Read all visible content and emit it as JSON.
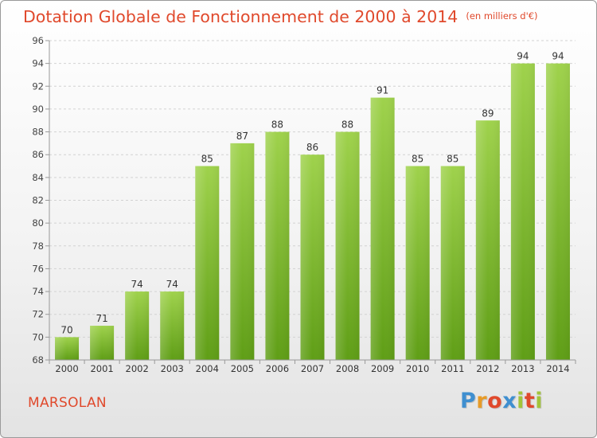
{
  "title": "Dotation Globale de Fonctionnement de 2000 à 2014",
  "unit": "(en milliers d'€)",
  "location": "MARSOLAN",
  "brand": {
    "letters": [
      "P",
      "r",
      "o",
      "x",
      "i",
      "t",
      "i"
    ],
    "colors": [
      "#3f8fd0",
      "#e79b28",
      "#e0492c",
      "#3f8fd0",
      "#a2c43a",
      "#e0492c",
      "#a2c43a"
    ]
  },
  "chart_data": {
    "type": "bar",
    "title": "Dotation Globale de Fonctionnement de 2000 à 2014",
    "categories": [
      "2000",
      "2001",
      "2002",
      "2003",
      "2004",
      "2005",
      "2006",
      "2007",
      "2008",
      "2009",
      "2010",
      "2011",
      "2012",
      "2013",
      "2014"
    ],
    "values": [
      70,
      71,
      74,
      74,
      85,
      87,
      88,
      86,
      88,
      91,
      85,
      85,
      89,
      94,
      94
    ],
    "xlabel": "",
    "ylabel": "",
    "ylim": [
      68,
      96
    ],
    "yticks": [
      68,
      70,
      72,
      74,
      76,
      78,
      80,
      82,
      84,
      86,
      88,
      90,
      92,
      94,
      96
    ],
    "grid": true,
    "bar_color": "#7cbf2e"
  }
}
